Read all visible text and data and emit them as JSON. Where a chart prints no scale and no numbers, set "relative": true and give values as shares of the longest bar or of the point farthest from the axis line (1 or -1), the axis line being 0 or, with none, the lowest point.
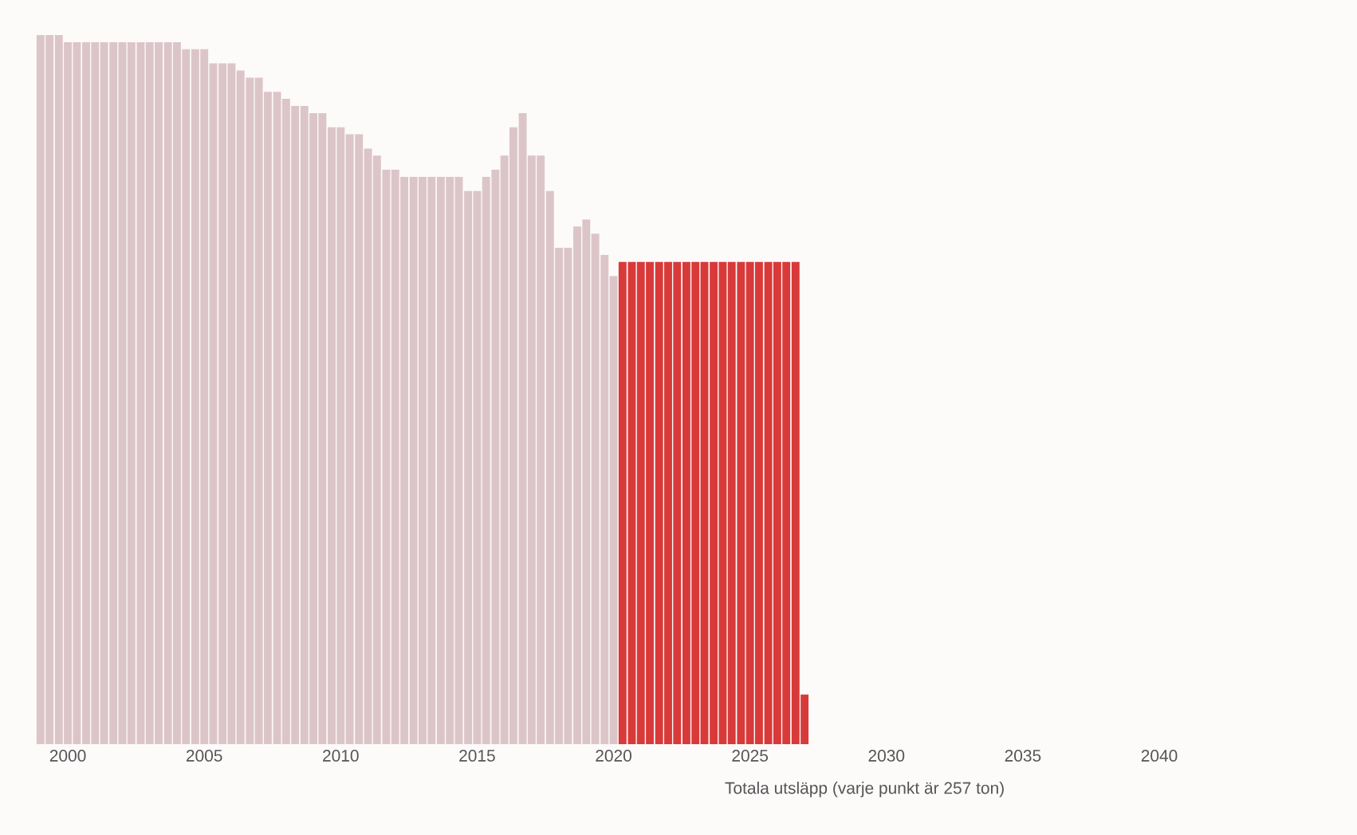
{
  "chart_data": {
    "type": "bar",
    "relative": true,
    "xlabel": "Totala utsläpp (varje punkt är 257 ton)",
    "xlim": [
      1998.8,
      2040
    ],
    "xticks": [
      2000,
      2005,
      2010,
      2015,
      2020,
      2025,
      2030,
      2035,
      2040
    ],
    "series": [
      {
        "color": "#dcc5c8",
        "x": [
          1999,
          1999.33,
          1999.67,
          2000,
          2000.33,
          2000.67,
          2001,
          2001.33,
          2001.67,
          2002,
          2002.33,
          2002.67,
          2003,
          2003.33,
          2003.67,
          2004,
          2004.33,
          2004.67,
          2005,
          2005.33,
          2005.67,
          2006,
          2006.33,
          2006.67,
          2007,
          2007.33,
          2007.67,
          2008,
          2008.33,
          2008.67,
          2009,
          2009.33,
          2009.67,
          2010,
          2010.33,
          2010.67,
          2011,
          2011.33,
          2011.67,
          2012,
          2012.33,
          2012.67,
          2013,
          2013.33,
          2013.67,
          2014,
          2014.33,
          2014.67,
          2015,
          2015.33,
          2015.67,
          2016,
          2016.33,
          2016.67,
          2017,
          2017.33,
          2017.67,
          2018,
          2018.33,
          2018.67,
          2019,
          2019.33,
          2019.67,
          2020
        ],
        "values": [
          1.0,
          1.0,
          1.0,
          0.99,
          0.99,
          0.99,
          0.99,
          0.99,
          0.99,
          0.99,
          0.99,
          0.99,
          0.99,
          0.99,
          0.99,
          0.99,
          0.98,
          0.98,
          0.98,
          0.96,
          0.96,
          0.96,
          0.95,
          0.94,
          0.94,
          0.92,
          0.92,
          0.91,
          0.9,
          0.9,
          0.89,
          0.89,
          0.87,
          0.87,
          0.86,
          0.86,
          0.84,
          0.83,
          0.81,
          0.81,
          0.8,
          0.8,
          0.8,
          0.8,
          0.8,
          0.8,
          0.8,
          0.78,
          0.78,
          0.8,
          0.81,
          0.83,
          0.87,
          0.89,
          0.83,
          0.83,
          0.78,
          0.7,
          0.7,
          0.73,
          0.74,
          0.72,
          0.69,
          0.66
        ]
      },
      {
        "color": "#d83a3a",
        "x": [
          2020.33,
          2020.67,
          2021,
          2021.33,
          2021.67,
          2022,
          2022.33,
          2022.67,
          2023,
          2023.33,
          2023.67,
          2024,
          2024.33,
          2024.67,
          2025,
          2025.33,
          2025.67,
          2026,
          2026.33,
          2026.67,
          2027
        ],
        "values": [
          0.68,
          0.68,
          0.68,
          0.68,
          0.68,
          0.68,
          0.68,
          0.68,
          0.68,
          0.68,
          0.68,
          0.68,
          0.68,
          0.68,
          0.68,
          0.68,
          0.68,
          0.68,
          0.68,
          0.68,
          0.07
        ]
      }
    ]
  }
}
